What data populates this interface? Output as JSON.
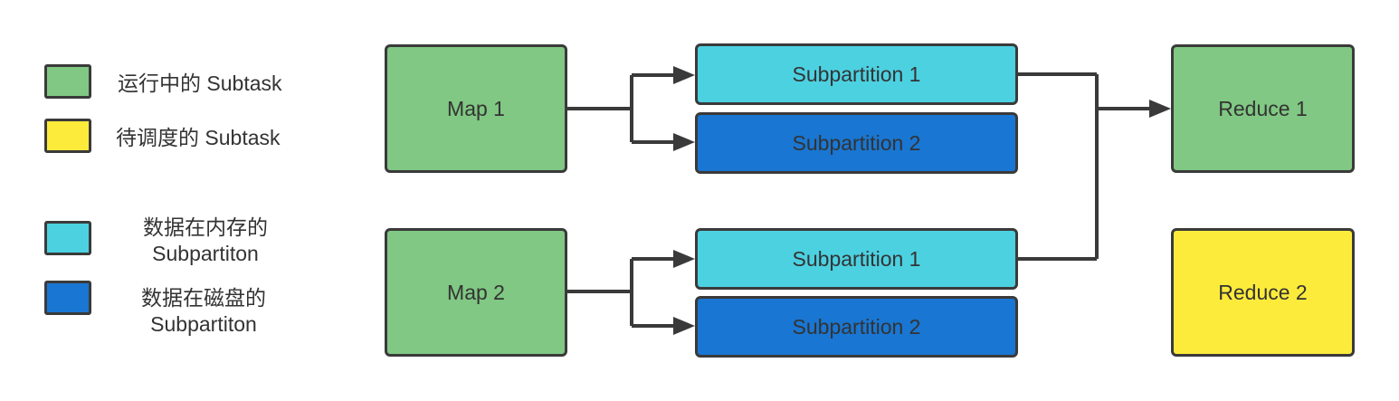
{
  "colors": {
    "running": "#80c883",
    "scheduled": "#fdeb3b",
    "in_memory": "#4cd1e1",
    "on_disk": "#1976d2",
    "stroke": "#3a3a3a"
  },
  "legend": {
    "running_label": "运行中的 Subtask",
    "scheduled_label": "待调度的 Subtask",
    "memory_label_line1": "数据在内存的",
    "memory_label_line2": "Subpartiton",
    "disk_label_line1": "数据在磁盘的",
    "disk_label_line2": "Subpartiton"
  },
  "maps": [
    {
      "label": "Map 1",
      "state": "running"
    },
    {
      "label": "Map 2",
      "state": "running"
    }
  ],
  "subpartitions": [
    {
      "label": "Subpartition 1",
      "storage": "in_memory",
      "map": "Map 1"
    },
    {
      "label": "Subpartition 2",
      "storage": "on_disk",
      "map": "Map 1"
    },
    {
      "label": "Subpartition 1",
      "storage": "in_memory",
      "map": "Map 2"
    },
    {
      "label": "Subpartition 2",
      "storage": "on_disk",
      "map": "Map 2"
    }
  ],
  "reducers": [
    {
      "label": "Reduce 1",
      "state": "running"
    },
    {
      "label": "Reduce 2",
      "state": "scheduled"
    }
  ]
}
